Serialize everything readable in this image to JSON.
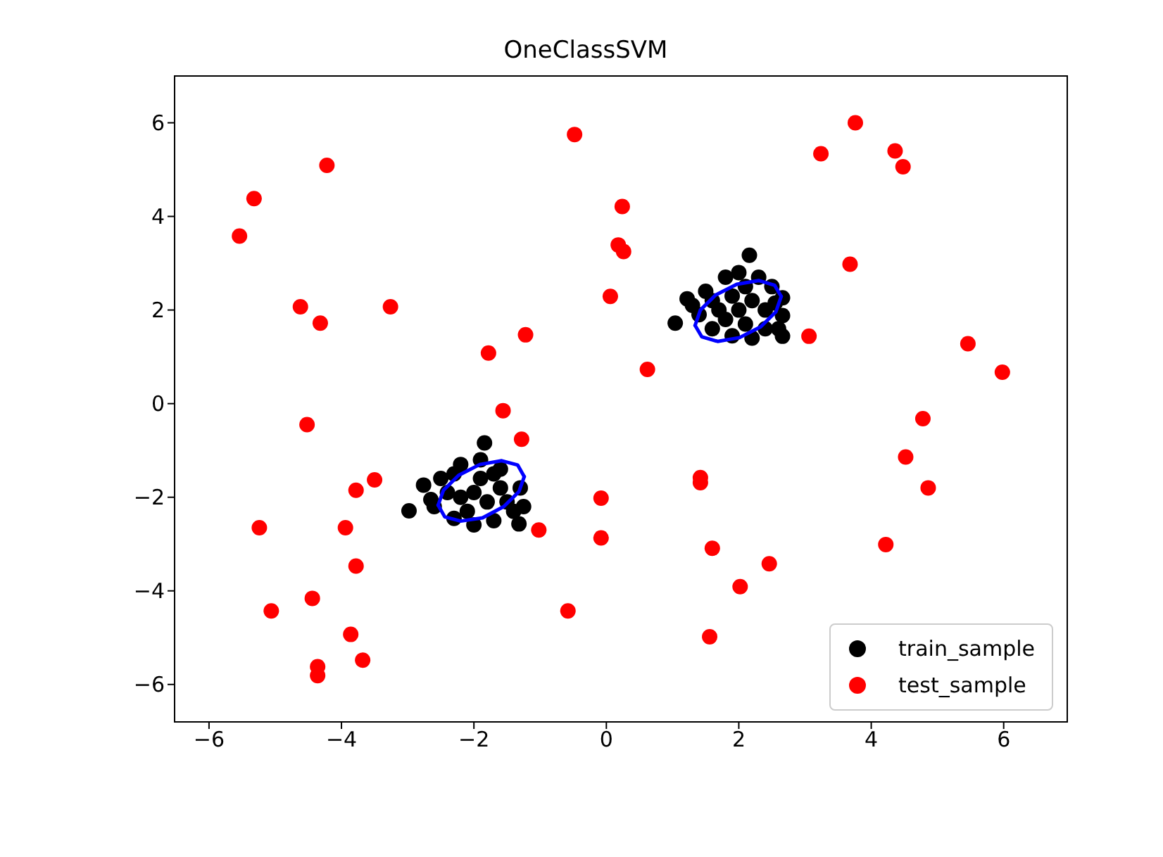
{
  "chart_data": {
    "type": "scatter",
    "title": "OneClassSVM",
    "xlim": [
      -6.52,
      6.96
    ],
    "ylim": [
      -6.8,
      7.0
    ],
    "xticks": [
      -6,
      -4,
      -2,
      0,
      2,
      4,
      6
    ],
    "yticks": [
      -6,
      -4,
      -2,
      0,
      2,
      4,
      6
    ],
    "grid": false,
    "legend": "bottom right",
    "marker": "circle",
    "series": [
      {
        "name": "train_sample",
        "color": "#000000",
        "x": [
          2.16,
          1.04,
          1.22,
          2.66,
          2.66,
          2.66,
          1.5,
          1.8,
          2.0,
          2.3,
          2.5,
          2.4,
          2.2,
          1.9,
          1.6,
          1.4,
          1.7,
          2.0,
          2.2,
          1.9,
          2.1,
          1.8,
          2.4,
          1.6,
          2.6,
          1.3,
          2.55,
          2.1,
          -1.84,
          -2.98,
          -2.76,
          -1.32,
          -2.0,
          -2.6,
          -2.5,
          -2.2,
          -1.9,
          -1.6,
          -1.3,
          -1.4,
          -1.7,
          -2.3,
          -2.0,
          -1.8,
          -2.2,
          -1.6,
          -2.4,
          -1.9,
          -2.1,
          -1.5,
          -2.65,
          -1.25,
          -2.3,
          -1.7
        ],
        "values": [
          3.17,
          1.72,
          2.24,
          2.26,
          1.44,
          1.88,
          2.4,
          2.7,
          2.8,
          2.7,
          2.5,
          1.6,
          1.4,
          1.45,
          1.6,
          1.9,
          2.0,
          2.0,
          2.2,
          2.3,
          1.7,
          1.8,
          2.0,
          2.2,
          1.6,
          2.1,
          2.15,
          2.5,
          -0.84,
          -2.29,
          -1.74,
          -2.57,
          -2.59,
          -2.2,
          -1.6,
          -1.3,
          -1.2,
          -1.4,
          -1.8,
          -2.3,
          -2.5,
          -2.45,
          -1.9,
          -2.1,
          -2.0,
          -1.8,
          -1.9,
          -1.6,
          -2.3,
          -2.1,
          -2.05,
          -2.2,
          -1.5,
          -1.5
        ]
      },
      {
        "name": "test_sample",
        "color": "#ff0000",
        "x": [
          -5.54,
          -5.32,
          -4.22,
          -4.62,
          -4.32,
          -3.26,
          -1.78,
          -1.22,
          -0.48,
          0.24,
          0.18,
          0.26,
          0.06,
          0.62,
          3.76,
          3.24,
          4.36,
          4.48,
          3.68,
          3.06,
          5.46,
          5.98,
          4.78,
          4.52,
          4.86,
          4.22,
          1.42,
          1.42,
          1.6,
          2.46,
          2.02,
          1.56,
          -0.08,
          -0.08,
          -1.02,
          -1.28,
          -1.56,
          -4.52,
          -3.78,
          -3.5,
          -5.24,
          -3.94,
          -3.78,
          -5.06,
          -4.44,
          -3.86,
          -4.36,
          -4.36,
          -3.68,
          -0.58
        ],
        "values": [
          3.58,
          4.38,
          5.09,
          2.07,
          1.72,
          2.07,
          1.08,
          1.47,
          5.75,
          4.21,
          3.39,
          3.25,
          2.29,
          0.73,
          6.0,
          5.34,
          5.4,
          5.06,
          2.98,
          1.44,
          1.28,
          0.67,
          -0.32,
          -1.14,
          -1.8,
          -3.01,
          -1.58,
          -1.69,
          -3.09,
          -3.42,
          -3.91,
          -4.98,
          -2.02,
          -2.87,
          -2.7,
          -0.76,
          -0.15,
          -0.45,
          -1.85,
          -1.63,
          -2.65,
          -2.65,
          -3.47,
          -4.43,
          -4.16,
          -4.93,
          -5.62,
          -5.81,
          -5.48,
          -4.43
        ]
      },
      {
        "type": "line",
        "color": "#0000ff",
        "marker": "none",
        "x": [
          1.34,
          1.42,
          1.65,
          1.97,
          2.3,
          2.54,
          2.64
        ],
        "values": [
          1.67,
          2.0,
          2.32,
          2.55,
          2.63,
          2.53,
          2.29
        ]
      },
      {
        "type": "line",
        "color": "#0000ff",
        "marker": "none",
        "x": [
          1.34,
          1.44,
          1.68,
          2.01,
          2.33,
          2.56,
          2.64
        ],
        "values": [
          1.67,
          1.43,
          1.33,
          1.41,
          1.64,
          1.96,
          2.29
        ]
      },
      {
        "type": "line",
        "color": "#0000ff",
        "marker": "none",
        "x": [
          -2.54,
          -2.46,
          -2.23,
          -1.91,
          -1.58,
          -1.34,
          -1.24
        ],
        "values": [
          -2.17,
          -1.85,
          -1.53,
          -1.3,
          -1.22,
          -1.31,
          -1.56
        ]
      },
      {
        "type": "line",
        "color": "#0000ff",
        "marker": "none",
        "x": [
          -2.54,
          -2.44,
          -2.2,
          -1.87,
          -1.55,
          -1.32,
          -1.24
        ],
        "values": [
          -2.17,
          -2.42,
          -2.51,
          -2.44,
          -2.2,
          -1.88,
          -1.56
        ]
      }
    ]
  }
}
